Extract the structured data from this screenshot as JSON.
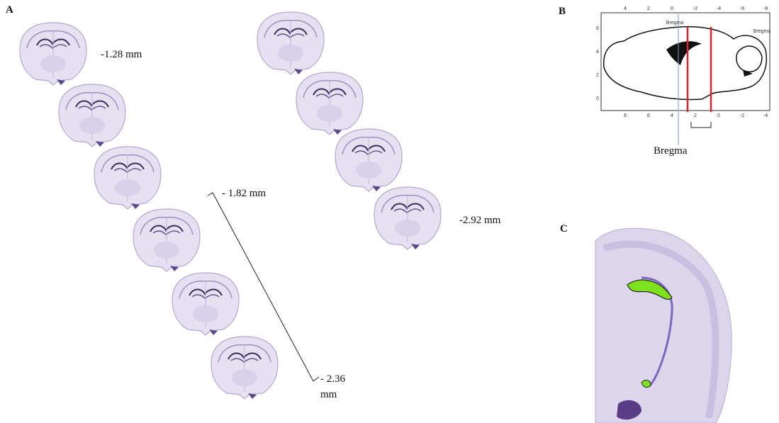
{
  "panel_a": {
    "label": "A",
    "section_labels": [
      "-1.28 mm",
      "- 1.82 mm",
      "- 2.36 mm",
      "-2.92 mm"
    ]
  },
  "panel_b": {
    "label": "B",
    "caption": "Bregma",
    "atlas_top_ticks": [
      "4",
      "2",
      "0",
      "-2",
      "-4",
      "-6",
      "-8"
    ],
    "atlas_bottom_ticks": [
      "8",
      "6",
      "4",
      "2",
      "0",
      "-2",
      "-4"
    ],
    "atlas_left_ticks": [
      "6",
      "4",
      "2",
      "0"
    ],
    "atlas_marks": [
      "Bregma",
      "Bregma"
    ]
  },
  "panel_c": {
    "label": "C"
  }
}
